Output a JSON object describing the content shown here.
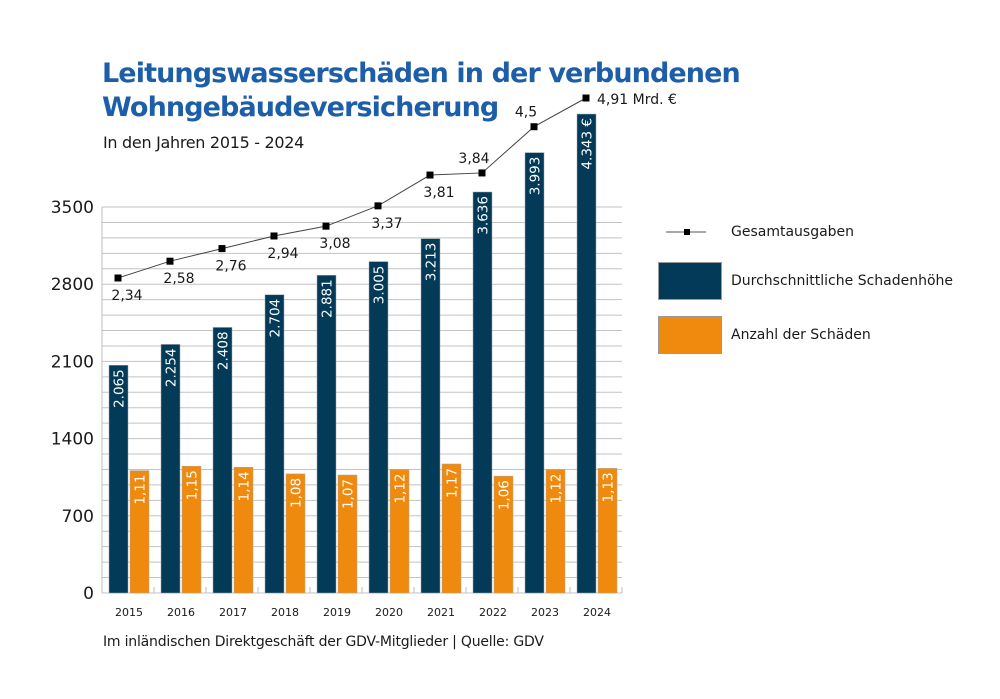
{
  "chart_data": {
    "type": "bar",
    "title": "Leitungswasserschäden in der verbundenen Wohngebäudeversicherung",
    "subtitle": "In den Jahren 2015 - 2024",
    "footer": "Im inländischen Direktgeschäft der GDV-Mitglieder | Quelle: GDV",
    "xlabel": "",
    "ylabel": "",
    "ylim": [
      0,
      3500
    ],
    "yticks": [
      {
        "value": 0,
        "label": "0"
      },
      {
        "value": 700,
        "label": "700"
      },
      {
        "value": 1400,
        "label": "1400"
      },
      {
        "value": 2100,
        "label": "2100"
      },
      {
        "value": 2800,
        "label": "2800"
      },
      {
        "value": 3500,
        "label": "3500"
      }
    ],
    "minor_grid_step": 140,
    "grid": true,
    "legend_position": "right",
    "categories": [
      "2015",
      "2016",
      "2017",
      "2018",
      "2019",
      "2020",
      "2021",
      "2022",
      "2023",
      "2024"
    ],
    "series": [
      {
        "name": "Durchschnittliche Schadenhöhe",
        "type": "bar",
        "color": "#023a58",
        "values": [
          2065,
          2254,
          2408,
          2704,
          2881,
          3005,
          3213,
          3636,
          3993,
          4343
        ],
        "labels": [
          "2.065",
          "2.254",
          "2.408",
          "2.704",
          "2.881",
          "3.005",
          "3.213",
          "3.636",
          "3.993",
          "4.343 €"
        ]
      },
      {
        "name": "Anzahl der Schäden",
        "type": "bar",
        "color": "#ef8a0e",
        "values": [
          1.11,
          1.15,
          1.14,
          1.08,
          1.07,
          1.12,
          1.17,
          1.06,
          1.12,
          1.13
        ],
        "labels": [
          "1,11",
          "1,15",
          "1,14",
          "1,08",
          "1,07",
          "1,12",
          "1,17",
          "1,06",
          "1,12",
          "1,13"
        ],
        "display_scale": 1000
      },
      {
        "name": "Gesamtausgaben",
        "type": "line",
        "color": "#000000",
        "values": [
          2.34,
          2.58,
          2.76,
          2.94,
          3.08,
          3.37,
          3.81,
          3.84,
          4.5,
          4.91
        ],
        "labels": [
          "2,34",
          "2,58",
          "2,76",
          "2,94",
          "3,08",
          "3,37",
          "3,81",
          "3,84",
          "4,5",
          "4,91 Mrd. €"
        ]
      }
    ]
  }
}
